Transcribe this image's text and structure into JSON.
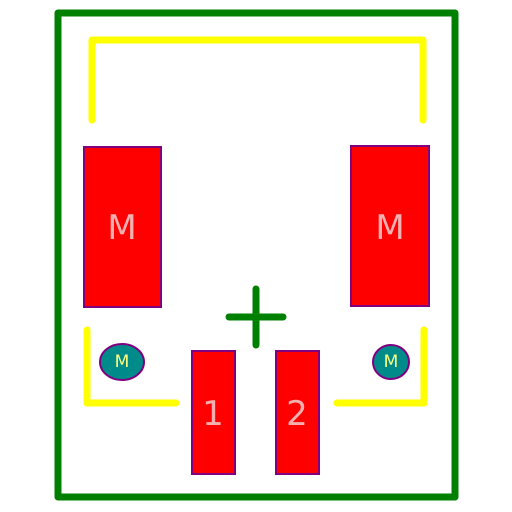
{
  "colors": {
    "outline": "#008000",
    "silkscreen": "#ffff00",
    "pad_fill": "#ff0000",
    "pad_stroke": "#800080",
    "pad_text": "#f4b0b0",
    "hole_fill": "#008b8b",
    "hole_text": "#ffff80"
  },
  "pads": {
    "mount_left": "M",
    "mount_right": "M",
    "pin_1": "1",
    "pin_2": "2"
  },
  "holes": {
    "left": "M",
    "right": "M"
  }
}
